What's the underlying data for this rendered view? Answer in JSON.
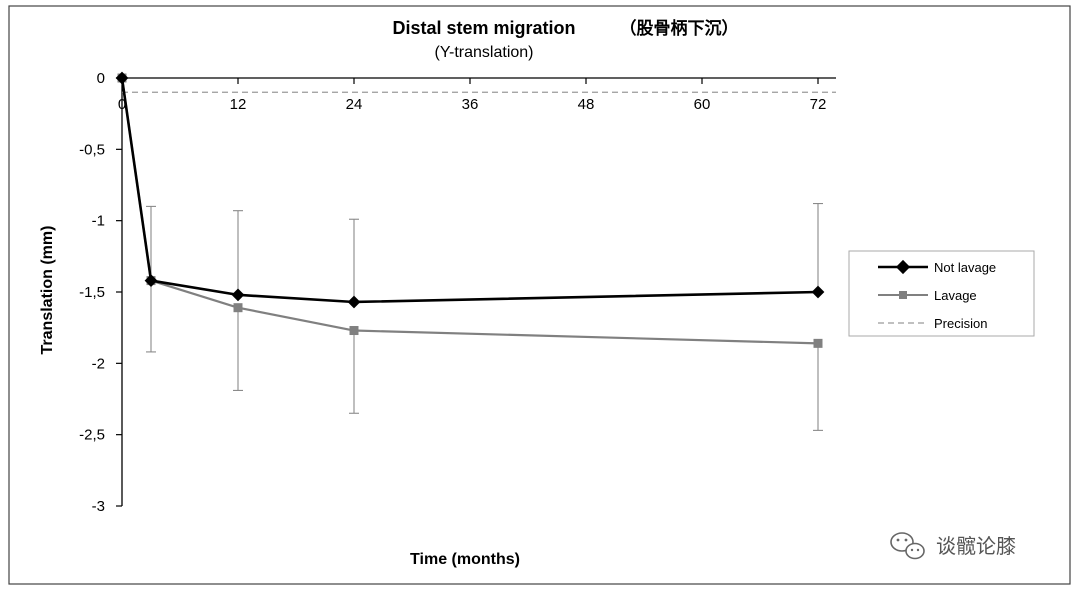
{
  "watermark": {
    "text": "谈髋论膝",
    "icon": "wechat-icon"
  },
  "colors": {
    "not_lavage": "#000000",
    "lavage": "#808080",
    "precision": "#9a9a9a",
    "axis": "#000000",
    "frame": "#444444"
  },
  "chart_data": {
    "type": "line",
    "title": "Distal stem migration",
    "title_cn": "（股骨柄下沉）",
    "subtitle": "(Y-translation)",
    "xlabel": "Time  (months)",
    "ylabel": "Translation (mm)",
    "xlim": [
      0,
      72
    ],
    "ylim": [
      -3,
      0
    ],
    "xticks": [
      0,
      12,
      24,
      36,
      48,
      60,
      72
    ],
    "xtick_labels": [
      "0",
      "12",
      "24",
      "36",
      "48",
      "60",
      "72"
    ],
    "yticks": [
      0,
      -0.5,
      -1,
      -1.5,
      -2,
      -2.5,
      -3
    ],
    "ytick_labels": [
      "0",
      "-0,5",
      "-1",
      "-1,5",
      "-2",
      "-2,5",
      "-3"
    ],
    "grid": false,
    "legend_position": "right",
    "series": [
      {
        "name": "Not lavage",
        "marker": "diamond",
        "color": "#000000",
        "x": [
          0,
          3,
          12,
          24,
          72
        ],
        "y": [
          0,
          -1.42,
          -1.52,
          -1.57,
          -1.5
        ],
        "error_upper": [
          null,
          -0.9,
          -0.93,
          -0.99,
          -0.88
        ]
      },
      {
        "name": "Lavage",
        "marker": "square",
        "color": "#808080",
        "x": [
          0,
          3,
          12,
          24,
          72
        ],
        "y": [
          0,
          -1.42,
          -1.61,
          -1.77,
          -1.86
        ],
        "error_lower": [
          null,
          -1.92,
          -2.19,
          -2.35,
          -2.47
        ]
      }
    ],
    "reference_lines": [
      {
        "name": "Precision",
        "y": -0.1,
        "style": "dashed",
        "color": "#9a9a9a"
      }
    ]
  }
}
